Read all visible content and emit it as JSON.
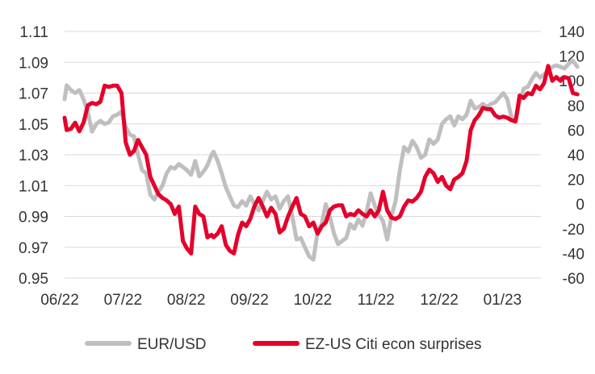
{
  "chart_data": {
    "type": "line",
    "title": "",
    "xlabel": "",
    "ylabel_left": "",
    "ylabel_right": "",
    "x_tick_labels": [
      "06/22",
      "07/22",
      "08/22",
      "09/22",
      "10/22",
      "11/22",
      "12/22",
      "01/23"
    ],
    "y_left": {
      "min": 0.95,
      "max": 1.11,
      "ticks": [
        "0.95",
        "0.97",
        "0.99",
        "1.01",
        "1.03",
        "1.05",
        "1.07",
        "1.09",
        "1.11"
      ]
    },
    "y_right": {
      "min": -60,
      "max": 140,
      "ticks": [
        "-60",
        "-40",
        "-20",
        "0",
        "20",
        "40",
        "60",
        "80",
        "100",
        "120",
        "140"
      ]
    },
    "grid": "horizontal",
    "legend_position": "bottom",
    "colors": {
      "eurusd": "#bfbfbf",
      "surprises": "#e4002b"
    },
    "series": [
      {
        "name": "EUR/USD",
        "axis": "left",
        "points": [
          [
            "2022-06-01",
            1.066
          ],
          [
            "2022-06-02",
            1.075
          ],
          [
            "2022-06-04",
            1.072
          ],
          [
            "2022-06-06",
            1.07
          ],
          [
            "2022-06-08",
            1.072
          ],
          [
            "2022-06-10",
            1.066
          ],
          [
            "2022-06-12",
            1.058
          ],
          [
            "2022-06-14",
            1.045
          ],
          [
            "2022-06-16",
            1.05
          ],
          [
            "2022-06-18",
            1.052
          ],
          [
            "2022-06-20",
            1.05
          ],
          [
            "2022-06-22",
            1.051
          ],
          [
            "2022-06-24",
            1.055
          ],
          [
            "2022-06-26",
            1.056
          ],
          [
            "2022-06-28",
            1.058
          ],
          [
            "2022-06-30",
            1.048
          ],
          [
            "2022-07-02",
            1.043
          ],
          [
            "2022-07-04",
            1.042
          ],
          [
            "2022-07-06",
            1.03
          ],
          [
            "2022-07-08",
            1.02
          ],
          [
            "2022-07-10",
            1.018
          ],
          [
            "2022-07-12",
            1.004
          ],
          [
            "2022-07-14",
            1.001
          ],
          [
            "2022-07-16",
            1.006
          ],
          [
            "2022-07-18",
            1.01
          ],
          [
            "2022-07-20",
            1.018
          ],
          [
            "2022-07-22",
            1.022
          ],
          [
            "2022-07-24",
            1.021
          ],
          [
            "2022-07-26",
            1.024
          ],
          [
            "2022-07-28",
            1.022
          ],
          [
            "2022-07-30",
            1.02
          ],
          [
            "2022-08-01",
            1.017
          ],
          [
            "2022-08-03",
            1.026
          ],
          [
            "2022-08-05",
            1.016
          ],
          [
            "2022-08-07",
            1.019
          ],
          [
            "2022-08-09",
            1.023
          ],
          [
            "2022-08-11",
            1.03
          ],
          [
            "2022-08-12",
            1.032
          ],
          [
            "2022-08-14",
            1.026
          ],
          [
            "2022-08-16",
            1.018
          ],
          [
            "2022-08-18",
            1.009
          ],
          [
            "2022-08-20",
            1.003
          ],
          [
            "2022-08-22",
            0.997
          ],
          [
            "2022-08-24",
            0.996
          ],
          [
            "2022-08-26",
            1.0
          ],
          [
            "2022-08-28",
            0.997
          ],
          [
            "2022-08-30",
            1.003
          ],
          [
            "2022-09-01",
            0.998
          ],
          [
            "2022-09-03",
            0.994
          ],
          [
            "2022-09-05",
            1.0
          ],
          [
            "2022-09-07",
            1.006
          ],
          [
            "2022-09-09",
            1.001
          ],
          [
            "2022-09-11",
            1.003
          ],
          [
            "2022-09-13",
            0.995
          ],
          [
            "2022-09-15",
            1.0
          ],
          [
            "2022-09-17",
            1.003
          ],
          [
            "2022-09-19",
            0.99
          ],
          [
            "2022-09-21",
            0.975
          ],
          [
            "2022-09-23",
            0.976
          ],
          [
            "2022-09-25",
            0.97
          ],
          [
            "2022-09-27",
            0.964
          ],
          [
            "2022-09-29",
            0.962
          ],
          [
            "2022-10-01",
            0.98
          ],
          [
            "2022-10-03",
            0.985
          ],
          [
            "2022-10-05",
            0.998
          ],
          [
            "2022-10-07",
            0.99
          ],
          [
            "2022-10-09",
            0.979
          ],
          [
            "2022-10-11",
            0.972
          ],
          [
            "2022-10-13",
            0.974
          ],
          [
            "2022-10-15",
            0.976
          ],
          [
            "2022-10-17",
            0.985
          ],
          [
            "2022-10-19",
            0.982
          ],
          [
            "2022-10-21",
            0.988
          ],
          [
            "2022-10-23",
            0.984
          ],
          [
            "2022-10-25",
            0.993
          ],
          [
            "2022-10-27",
            1.005
          ],
          [
            "2022-10-29",
            0.997
          ],
          [
            "2022-10-31",
            0.991
          ],
          [
            "2022-11-02",
            0.987
          ],
          [
            "2022-11-04",
            0.975
          ],
          [
            "2022-11-06",
            0.99
          ],
          [
            "2022-11-08",
            1.0
          ],
          [
            "2022-11-10",
            1.02
          ],
          [
            "2022-11-12",
            1.035
          ],
          [
            "2022-11-14",
            1.032
          ],
          [
            "2022-11-16",
            1.039
          ],
          [
            "2022-11-18",
            1.035
          ],
          [
            "2022-11-20",
            1.028
          ],
          [
            "2022-11-22",
            1.03
          ],
          [
            "2022-11-24",
            1.04
          ],
          [
            "2022-11-26",
            1.037
          ],
          [
            "2022-11-28",
            1.04
          ],
          [
            "2022-11-30",
            1.05
          ],
          [
            "2022-12-02",
            1.053
          ],
          [
            "2022-12-04",
            1.055
          ],
          [
            "2022-12-06",
            1.049
          ],
          [
            "2022-12-08",
            1.055
          ],
          [
            "2022-12-10",
            1.053
          ],
          [
            "2022-12-12",
            1.056
          ],
          [
            "2022-12-14",
            1.065
          ],
          [
            "2022-12-16",
            1.06
          ],
          [
            "2022-12-18",
            1.061
          ],
          [
            "2022-12-20",
            1.063
          ],
          [
            "2022-12-22",
            1.061
          ],
          [
            "2022-12-24",
            1.063
          ],
          [
            "2022-12-26",
            1.064
          ],
          [
            "2022-12-28",
            1.067
          ],
          [
            "2022-12-30",
            1.07
          ],
          [
            "2023-01-01",
            1.066
          ],
          [
            "2023-01-03",
            1.054
          ],
          [
            "2023-01-05",
            1.052
          ],
          [
            "2023-01-07",
            1.064
          ],
          [
            "2023-01-09",
            1.073
          ],
          [
            "2023-01-11",
            1.074
          ],
          [
            "2023-01-13",
            1.079
          ],
          [
            "2023-01-15",
            1.083
          ],
          [
            "2023-01-17",
            1.08
          ],
          [
            "2023-01-19",
            1.082
          ],
          [
            "2023-01-21",
            1.085
          ],
          [
            "2023-01-23",
            1.087
          ],
          [
            "2023-01-25",
            1.088
          ],
          [
            "2023-01-27",
            1.087
          ],
          [
            "2023-01-29",
            1.086
          ],
          [
            "2023-01-31",
            1.089
          ],
          [
            "2023-02-02",
            1.091
          ],
          [
            "2023-02-04",
            1.087
          ]
        ]
      },
      {
        "name": "EZ-US Citi econ surprises",
        "axis": "right",
        "points": [
          [
            "2022-06-01",
            70
          ],
          [
            "2022-06-02",
            60
          ],
          [
            "2022-06-04",
            61
          ],
          [
            "2022-06-06",
            66
          ],
          [
            "2022-06-08",
            59
          ],
          [
            "2022-06-10",
            66
          ],
          [
            "2022-06-12",
            80
          ],
          [
            "2022-06-14",
            82
          ],
          [
            "2022-06-16",
            81
          ],
          [
            "2022-06-18",
            83
          ],
          [
            "2022-06-20",
            96
          ],
          [
            "2022-06-22",
            95
          ],
          [
            "2022-06-24",
            96
          ],
          [
            "2022-06-26",
            96
          ],
          [
            "2022-06-28",
            90
          ],
          [
            "2022-06-30",
            50
          ],
          [
            "2022-07-02",
            40
          ],
          [
            "2022-07-04",
            43
          ],
          [
            "2022-07-06",
            52
          ],
          [
            "2022-07-08",
            46
          ],
          [
            "2022-07-10",
            40
          ],
          [
            "2022-07-12",
            22
          ],
          [
            "2022-07-14",
            15
          ],
          [
            "2022-07-16",
            8
          ],
          [
            "2022-07-18",
            5
          ],
          [
            "2022-07-20",
            3
          ],
          [
            "2022-07-22",
            0
          ],
          [
            "2022-07-24",
            -8
          ],
          [
            "2022-07-26",
            -2
          ],
          [
            "2022-07-28",
            -30
          ],
          [
            "2022-07-30",
            -36
          ],
          [
            "2022-08-01",
            -40
          ],
          [
            "2022-08-03",
            -2
          ],
          [
            "2022-08-05",
            -8
          ],
          [
            "2022-08-07",
            -10
          ],
          [
            "2022-08-09",
            -27
          ],
          [
            "2022-08-11",
            -25
          ],
          [
            "2022-08-12",
            -27
          ],
          [
            "2022-08-14",
            -24
          ],
          [
            "2022-08-16",
            -18
          ],
          [
            "2022-08-18",
            -33
          ],
          [
            "2022-08-20",
            -38
          ],
          [
            "2022-08-22",
            -40
          ],
          [
            "2022-08-24",
            -25
          ],
          [
            "2022-08-26",
            -15
          ],
          [
            "2022-08-28",
            -18
          ],
          [
            "2022-08-30",
            -12
          ],
          [
            "2022-09-01",
            -2
          ],
          [
            "2022-09-03",
            5
          ],
          [
            "2022-09-05",
            -2
          ],
          [
            "2022-09-07",
            -10
          ],
          [
            "2022-09-09",
            -3
          ],
          [
            "2022-09-11",
            -8
          ],
          [
            "2022-09-13",
            -23
          ],
          [
            "2022-09-15",
            -20
          ],
          [
            "2022-09-17",
            -10
          ],
          [
            "2022-09-19",
            -2
          ],
          [
            "2022-09-21",
            5
          ],
          [
            "2022-09-23",
            -8
          ],
          [
            "2022-09-25",
            -10
          ],
          [
            "2022-09-27",
            -18
          ],
          [
            "2022-09-29",
            -15
          ],
          [
            "2022-10-01",
            -24
          ],
          [
            "2022-10-03",
            -18
          ],
          [
            "2022-10-05",
            -15
          ],
          [
            "2022-10-07",
            -5
          ],
          [
            "2022-10-09",
            -2
          ],
          [
            "2022-10-11",
            -1
          ],
          [
            "2022-10-13",
            -1
          ],
          [
            "2022-10-15",
            -10
          ],
          [
            "2022-10-17",
            -8
          ],
          [
            "2022-10-19",
            -9
          ],
          [
            "2022-10-21",
            -5
          ],
          [
            "2022-10-23",
            -8
          ],
          [
            "2022-10-25",
            -10
          ],
          [
            "2022-10-27",
            -5
          ],
          [
            "2022-10-29",
            -10
          ],
          [
            "2022-10-31",
            -5
          ],
          [
            "2022-11-02",
            10
          ],
          [
            "2022-11-04",
            -5
          ],
          [
            "2022-11-06",
            -11
          ],
          [
            "2022-11-08",
            -12
          ],
          [
            "2022-11-10",
            -10
          ],
          [
            "2022-11-12",
            -2
          ],
          [
            "2022-11-14",
            3
          ],
          [
            "2022-11-16",
            2
          ],
          [
            "2022-11-18",
            5
          ],
          [
            "2022-11-20",
            10
          ],
          [
            "2022-11-22",
            22
          ],
          [
            "2022-11-24",
            28
          ],
          [
            "2022-11-26",
            25
          ],
          [
            "2022-11-28",
            18
          ],
          [
            "2022-11-30",
            22
          ],
          [
            "2022-12-02",
            15
          ],
          [
            "2022-12-04",
            12
          ],
          [
            "2022-12-06",
            20
          ],
          [
            "2022-12-08",
            22
          ],
          [
            "2022-12-10",
            25
          ],
          [
            "2022-12-12",
            35
          ],
          [
            "2022-12-14",
            60
          ],
          [
            "2022-12-16",
            68
          ],
          [
            "2022-12-18",
            72
          ],
          [
            "2022-12-20",
            78
          ],
          [
            "2022-12-22",
            77
          ],
          [
            "2022-12-24",
            77
          ],
          [
            "2022-12-26",
            72
          ],
          [
            "2022-12-28",
            70
          ],
          [
            "2022-12-30",
            71
          ],
          [
            "2023-01-01",
            70
          ],
          [
            "2023-01-03",
            68
          ],
          [
            "2023-01-05",
            67
          ],
          [
            "2023-01-07",
            88
          ],
          [
            "2023-01-09",
            86
          ],
          [
            "2023-01-11",
            90
          ],
          [
            "2023-01-13",
            89
          ],
          [
            "2023-01-15",
            96
          ],
          [
            "2023-01-17",
            93
          ],
          [
            "2023-01-19",
            98
          ],
          [
            "2023-01-21",
            112
          ],
          [
            "2023-01-23",
            100
          ],
          [
            "2023-01-25",
            103
          ],
          [
            "2023-01-27",
            100
          ],
          [
            "2023-01-29",
            103
          ],
          [
            "2023-01-31",
            102
          ],
          [
            "2023-02-02",
            90
          ],
          [
            "2023-02-04",
            89
          ]
        ]
      }
    ]
  }
}
